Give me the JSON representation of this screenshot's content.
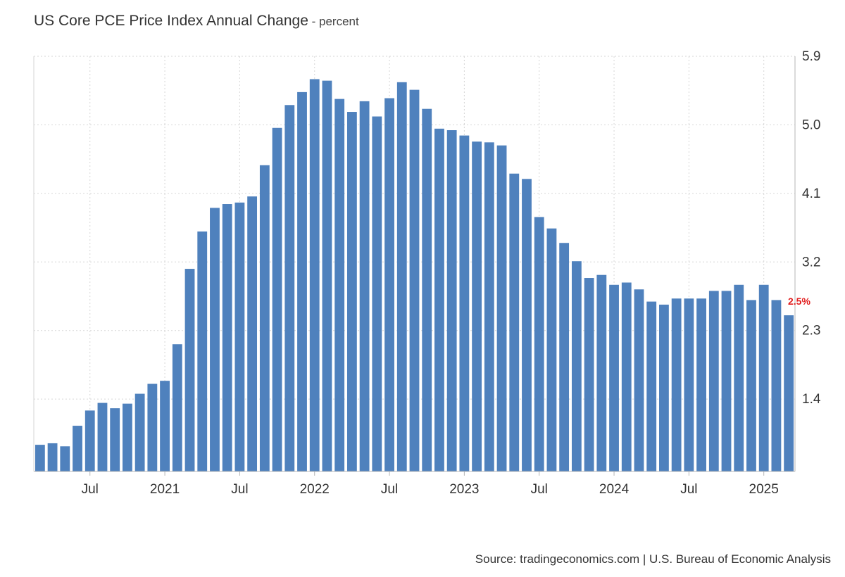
{
  "header": {
    "title": "US Core PCE Price Index Annual Change",
    "separator": " - ",
    "unit": "percent"
  },
  "footer": {
    "source": "Source: tradingeconomics.com | U.S. Bureau of Economic Analysis"
  },
  "colors": {
    "bar": "#4f81bd",
    "latest_label": "#e11d1d",
    "grid": "#d6d6d6",
    "axis": "#b5b5b5",
    "text": "#333333"
  },
  "chart_data": {
    "type": "bar",
    "x": [
      "2020-03",
      "2020-04",
      "2020-05",
      "2020-06",
      "2020-07",
      "2020-08",
      "2020-09",
      "2020-10",
      "2020-11",
      "2020-12",
      "2021-01",
      "2021-02",
      "2021-03",
      "2021-04",
      "2021-05",
      "2021-06",
      "2021-07",
      "2021-08",
      "2021-09",
      "2021-10",
      "2021-11",
      "2021-12",
      "2022-01",
      "2022-02",
      "2022-03",
      "2022-04",
      "2022-05",
      "2022-06",
      "2022-07",
      "2022-08",
      "2022-09",
      "2022-10",
      "2022-11",
      "2022-12",
      "2023-01",
      "2023-02",
      "2023-03",
      "2023-04",
      "2023-05",
      "2023-06",
      "2023-07",
      "2023-08",
      "2023-09",
      "2023-10",
      "2023-11",
      "2023-12",
      "2024-01",
      "2024-02",
      "2024-03",
      "2024-04",
      "2024-05",
      "2024-06",
      "2024-07",
      "2024-08",
      "2024-09",
      "2024-10",
      "2024-11",
      "2024-12",
      "2025-01",
      "2025-02",
      "2025-03"
    ],
    "values": [
      0.8,
      0.82,
      0.78,
      1.05,
      1.25,
      1.35,
      1.28,
      1.34,
      1.47,
      1.6,
      1.64,
      2.12,
      3.11,
      3.6,
      3.91,
      3.96,
      3.98,
      4.06,
      4.47,
      4.96,
      5.26,
      5.43,
      5.6,
      5.58,
      5.34,
      5.17,
      5.31,
      5.11,
      5.35,
      5.56,
      5.46,
      5.21,
      4.95,
      4.93,
      4.86,
      4.78,
      4.77,
      4.73,
      4.36,
      4.29,
      3.79,
      3.64,
      3.45,
      3.21,
      2.99,
      3.03,
      2.9,
      2.93,
      2.84,
      2.68,
      2.64,
      2.72,
      2.72,
      2.72,
      2.82,
      2.82,
      2.9,
      2.7,
      2.9,
      2.7,
      2.5
    ],
    "latest_label": "2.5%",
    "title": "US Core PCE Price Index Annual Change",
    "ylabel": "percent",
    "ylim": [
      0.45,
      5.9
    ],
    "y_ticks": [
      1.4,
      2.3,
      3.2,
      4.1,
      5.0,
      5.9
    ],
    "y_tick_labels": [
      "1.4",
      "2.3",
      "3.2",
      "4.1",
      "5.0",
      "5.9"
    ],
    "x_ticks": [
      {
        "at": "2020-07",
        "label": "Jul"
      },
      {
        "at": "2021-01",
        "label": "2021"
      },
      {
        "at": "2021-07",
        "label": "Jul"
      },
      {
        "at": "2022-01",
        "label": "2022"
      },
      {
        "at": "2022-07",
        "label": "Jul"
      },
      {
        "at": "2023-01",
        "label": "2023"
      },
      {
        "at": "2023-07",
        "label": "Jul"
      },
      {
        "at": "2024-01",
        "label": "2024"
      },
      {
        "at": "2024-07",
        "label": "Jul"
      },
      {
        "at": "2025-01",
        "label": "2025"
      }
    ],
    "grid": true,
    "y_axis_position": "right",
    "legend": "none"
  }
}
